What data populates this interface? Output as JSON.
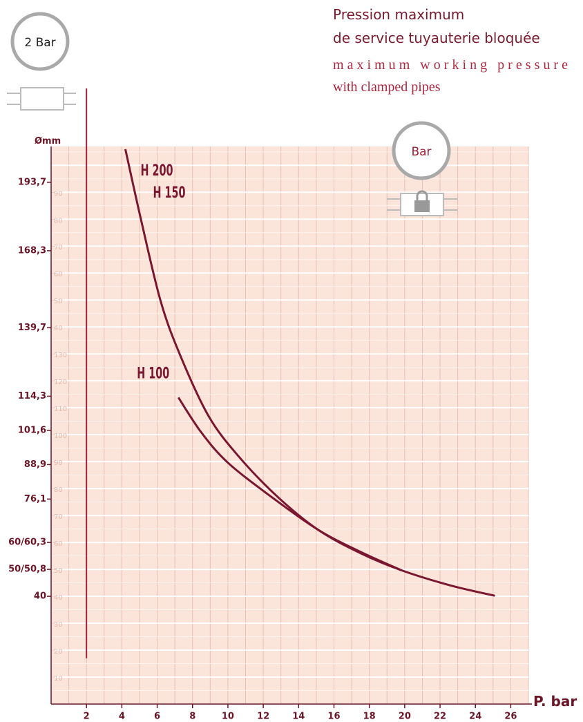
{
  "chart_data": {
    "type": "line",
    "title": [
      "Pression maximum",
      "de service tuyauterie bloquée"
    ],
    "subtitle": [
      "maximum working pressure",
      "with clamped pipes"
    ],
    "badges": [
      "2 Bar",
      "Bar"
    ],
    "y_label": "Ømm",
    "x_label": "P. bar",
    "xlim": [
      0,
      27
    ],
    "xticks": [
      2,
      4,
      6,
      8,
      10,
      12,
      14,
      16,
      18,
      20,
      22,
      24,
      26
    ],
    "ylim": [
      0,
      207
    ],
    "yticks": [
      {
        "value": 193.7,
        "label": "193,7"
      },
      {
        "value": 168.3,
        "label": "168,3"
      },
      {
        "value": 139.7,
        "label": "139,7"
      },
      {
        "value": 114.3,
        "label": "114,3"
      },
      {
        "value": 101.6,
        "label": "101,6"
      },
      {
        "value": 88.9,
        "label": "88,9"
      },
      {
        "value": 76.1,
        "label": "76,1"
      },
      {
        "value": 60,
        "label": "60/60,3"
      },
      {
        "value": 50,
        "label": "50/50,8"
      },
      40
    ],
    "inner_yticks": [
      10,
      20,
      30,
      40,
      50,
      60,
      70,
      80,
      90,
      100,
      110,
      120,
      130,
      {
        "value": 140,
        "label": "40"
      },
      {
        "value": 150,
        "label": "50"
      },
      {
        "value": 160,
        "label": "60"
      },
      {
        "value": 170,
        "label": "70"
      },
      {
        "value": 180,
        "label": "80"
      },
      {
        "value": 190,
        "label": "90"
      }
    ],
    "grid": true,
    "reference_line": {
      "x": 2,
      "y_bottom": 17
    },
    "series": [
      {
        "name": "H 200",
        "labels": [
          "H 200",
          "H 150"
        ],
        "color": "#7a1630",
        "x": [
          4.2,
          5.1,
          6.2,
          7.3,
          8.9,
          10.6,
          12.8,
          15.1,
          17.5,
          19.8,
          22.6,
          25.1
        ],
        "values": [
          206,
          179.4,
          149.5,
          129.5,
          107,
          92,
          77,
          64.7,
          56,
          49.7,
          44,
          40.2
        ]
      },
      {
        "name": "H 100",
        "labels": [
          "H 100"
        ],
        "color": "#7a1630",
        "x": [
          7.2,
          8.5,
          10.0,
          12.4,
          15.1,
          17.5,
          19.8
        ],
        "values": [
          113.8,
          100.8,
          89.6,
          77.2,
          64.7,
          56.5,
          49.7
        ]
      }
    ]
  }
}
